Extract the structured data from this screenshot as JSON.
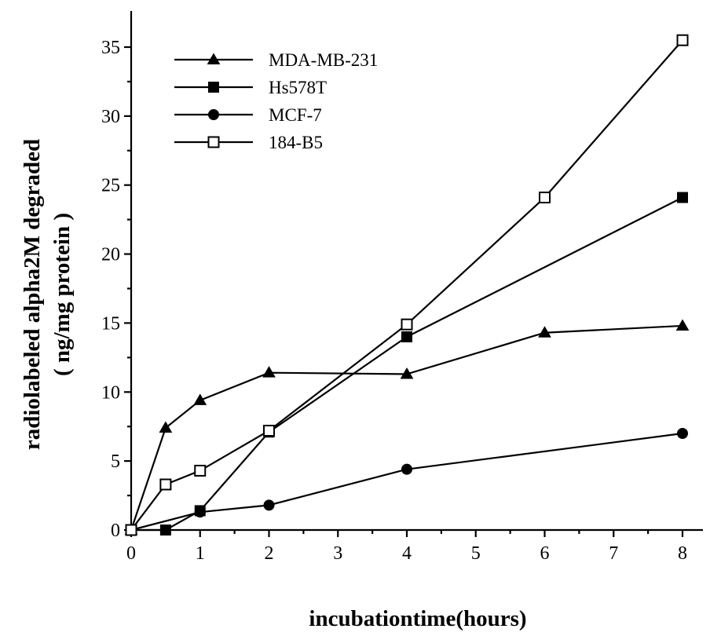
{
  "chart_data": {
    "type": "line",
    "xlabel": "incubationtime(hours)",
    "ylabel_line1": "radiolabeled alpha2M degraded",
    "ylabel_line2": "( ng/mg protein )",
    "xlim": [
      0,
      8
    ],
    "ylim": [
      0,
      35
    ],
    "xticks": [
      0,
      1,
      2,
      3,
      4,
      5,
      6,
      7,
      8
    ],
    "yticks": [
      0,
      5,
      10,
      15,
      20,
      25,
      30,
      35
    ],
    "grid": false,
    "legend_position": "top-left",
    "series": [
      {
        "name": "MDA-MB-231",
        "marker": "filled-triangle",
        "x": [
          0,
          0.5,
          1,
          2,
          4,
          6,
          8
        ],
        "y": [
          0,
          7.4,
          9.4,
          11.4,
          11.3,
          14.3,
          14.8
        ]
      },
      {
        "name": "Hs578T",
        "marker": "filled-square",
        "x": [
          0,
          0.5,
          1,
          2,
          4,
          8
        ],
        "y": [
          0,
          0,
          1.4,
          7.1,
          14.0,
          24.1
        ]
      },
      {
        "name": "MCF-7",
        "marker": "filled-circle",
        "x": [
          0,
          1,
          2,
          4,
          8
        ],
        "y": [
          0,
          1.3,
          1.8,
          4.4,
          7.0
        ]
      },
      {
        "name": "184-B5",
        "marker": "open-square",
        "x": [
          0,
          0.5,
          1,
          2,
          4,
          6,
          8
        ],
        "y": [
          0,
          3.3,
          4.3,
          7.2,
          14.9,
          24.1,
          35.5
        ]
      }
    ]
  }
}
